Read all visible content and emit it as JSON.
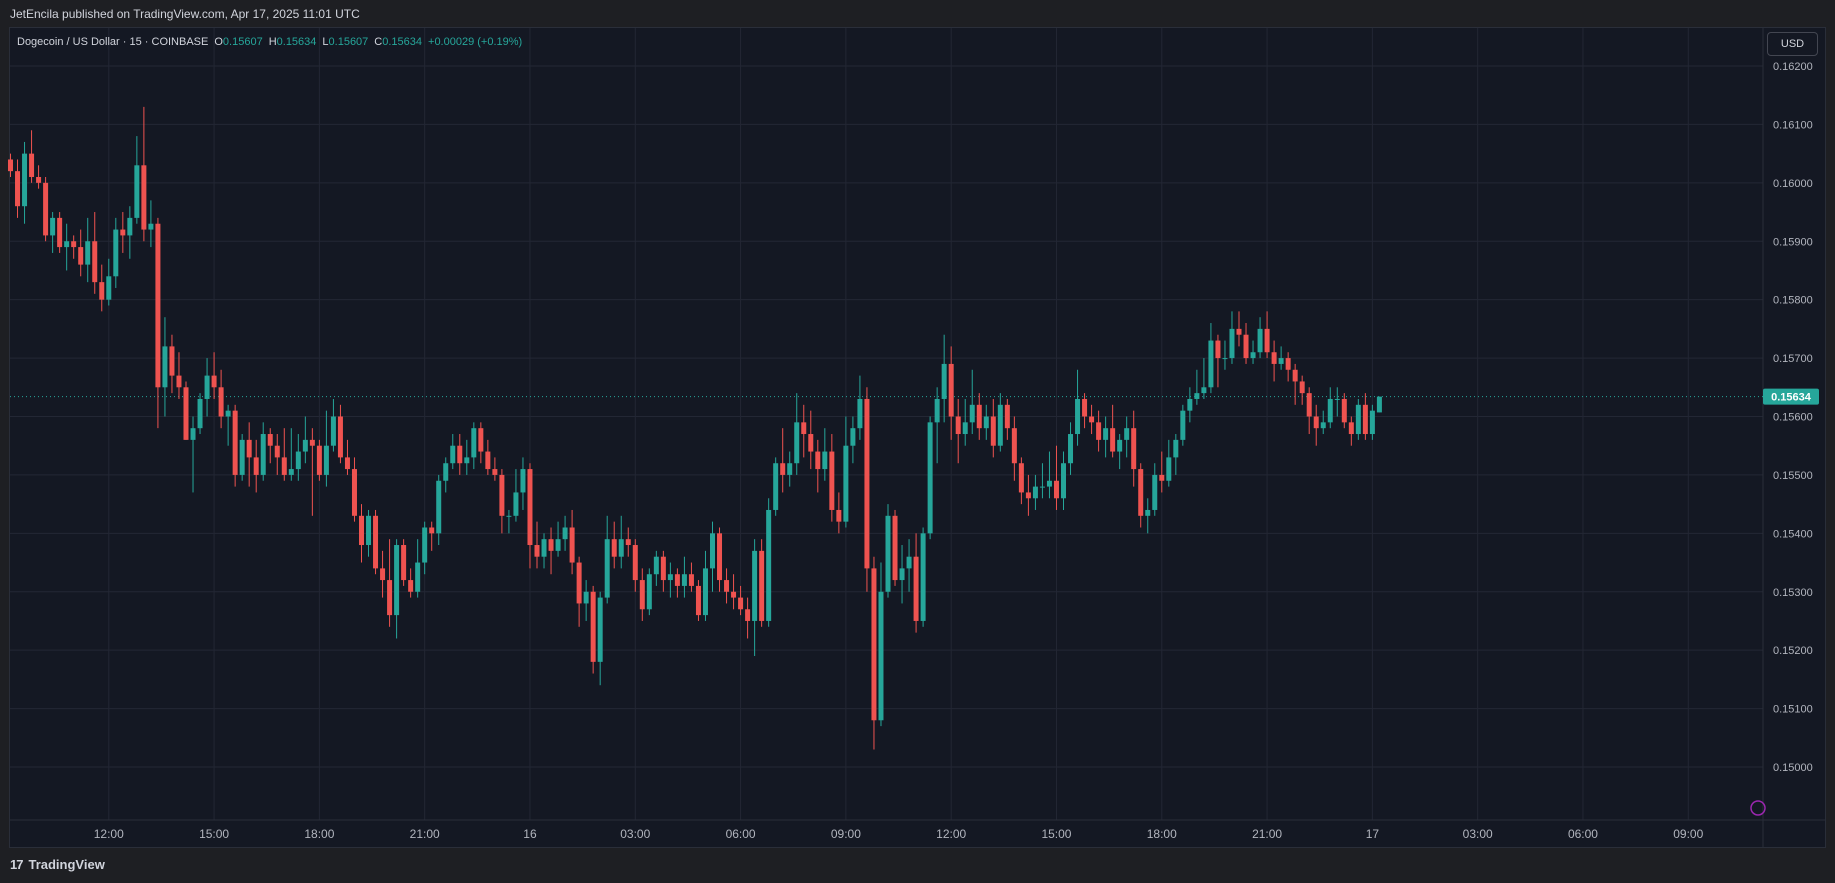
{
  "header": {
    "published": "JetEncila published on TradingView.com, Apr 17, 2025 11:01 UTC"
  },
  "legend": {
    "symbol": "Dogecoin / US Dollar · 15 · COINBASE",
    "o_label": "O",
    "o_value": "0.15607",
    "h_label": "H",
    "h_value": "0.15634",
    "l_label": "L",
    "l_value": "0.15607",
    "c_label": "C",
    "c_value": "0.15634",
    "change": "+0.00029 (+0.19%)"
  },
  "currency_button": "USD",
  "footer": {
    "brand": "TradingView",
    "logo_glyph": "17"
  },
  "colors": {
    "up": "#26a69a",
    "down": "#ef5350",
    "background": "#141823",
    "grid": "#232734",
    "text": "#d1d4dc"
  },
  "chart_data": {
    "type": "candlestick",
    "title": "Dogecoin / US Dollar · 15 · COINBASE",
    "ylim": [
      0.1494,
      0.1623
    ],
    "y_ticks": [
      "0.16200",
      "0.16100",
      "0.16000",
      "0.15900",
      "0.15800",
      "0.15700",
      "0.15600",
      "0.15500",
      "0.15400",
      "0.15300",
      "0.15200",
      "0.15100",
      "0.15000"
    ],
    "x_ticks": [
      {
        "label": "12:00",
        "index": 14
      },
      {
        "label": "15:00",
        "index": 29
      },
      {
        "label": "18:00",
        "index": 44
      },
      {
        "label": "21:00",
        "index": 59
      },
      {
        "label": "16",
        "index": 74
      },
      {
        "label": "03:00",
        "index": 89
      },
      {
        "label": "06:00",
        "index": 104
      },
      {
        "label": "09:00",
        "index": 119
      },
      {
        "label": "12:00",
        "index": 134
      },
      {
        "label": "15:00",
        "index": 149
      },
      {
        "label": "18:00",
        "index": 164
      },
      {
        "label": "21:00",
        "index": 179
      },
      {
        "label": "17",
        "index": 194
      },
      {
        "label": "03:00",
        "index": 209
      },
      {
        "label": "06:00",
        "index": 224
      },
      {
        "label": "09:00",
        "index": 239
      }
    ],
    "last_price": "0.15634",
    "last_price_value": 0.15634,
    "grid": true,
    "candles": [
      [
        0.1604,
        0.1605,
        0.1601,
        0.1602
      ],
      [
        0.1602,
        0.1604,
        0.1594,
        0.1596
      ],
      [
        0.1596,
        0.1607,
        0.1593,
        0.1605
      ],
      [
        0.1605,
        0.1609,
        0.16,
        0.1601
      ],
      [
        0.1601,
        0.1603,
        0.1599,
        0.16
      ],
      [
        0.16,
        0.1601,
        0.159,
        0.1591
      ],
      [
        0.1591,
        0.1595,
        0.1588,
        0.1594
      ],
      [
        0.1594,
        0.1595,
        0.1588,
        0.1589
      ],
      [
        0.1589,
        0.1593,
        0.1585,
        0.159
      ],
      [
        0.159,
        0.1591,
        0.1587,
        0.1589
      ],
      [
        0.1589,
        0.1592,
        0.1584,
        0.1586
      ],
      [
        0.1586,
        0.1594,
        0.1583,
        0.159
      ],
      [
        0.159,
        0.1595,
        0.1581,
        0.1583
      ],
      [
        0.1583,
        0.1586,
        0.1578,
        0.158
      ],
      [
        0.158,
        0.1587,
        0.1579,
        0.1584
      ],
      [
        0.1584,
        0.1594,
        0.1582,
        0.1592
      ],
      [
        0.1592,
        0.1595,
        0.1588,
        0.1591
      ],
      [
        0.1591,
        0.1596,
        0.1587,
        0.1594
      ],
      [
        0.1594,
        0.1608,
        0.1593,
        0.1603
      ],
      [
        0.1603,
        0.1613,
        0.159,
        0.1592
      ],
      [
        0.1592,
        0.1597,
        0.1589,
        0.1593
      ],
      [
        0.1593,
        0.1594,
        0.1558,
        0.1565
      ],
      [
        0.1565,
        0.1577,
        0.156,
        0.1572
      ],
      [
        0.1572,
        0.1574,
        0.1564,
        0.1567
      ],
      [
        0.1567,
        0.1571,
        0.1563,
        0.1565
      ],
      [
        0.1565,
        0.1566,
        0.1556,
        0.1556
      ],
      [
        0.1556,
        0.156,
        0.1547,
        0.1558
      ],
      [
        0.1558,
        0.1564,
        0.1557,
        0.1563
      ],
      [
        0.1563,
        0.157,
        0.156,
        0.1567
      ],
      [
        0.1567,
        0.1571,
        0.1563,
        0.1565
      ],
      [
        0.1565,
        0.1568,
        0.1558,
        0.156
      ],
      [
        0.156,
        0.1562,
        0.1555,
        0.1561
      ],
      [
        0.1561,
        0.1562,
        0.1548,
        0.155
      ],
      [
        0.155,
        0.1557,
        0.1549,
        0.1556
      ],
      [
        0.1556,
        0.1559,
        0.1548,
        0.1553
      ],
      [
        0.1553,
        0.1556,
        0.1547,
        0.155
      ],
      [
        0.155,
        0.1559,
        0.1549,
        0.1557
      ],
      [
        0.1557,
        0.1558,
        0.1552,
        0.1555
      ],
      [
        0.1555,
        0.1557,
        0.155,
        0.1553
      ],
      [
        0.1553,
        0.1558,
        0.1549,
        0.155
      ],
      [
        0.155,
        0.1558,
        0.1549,
        0.1551
      ],
      [
        0.1551,
        0.1557,
        0.1549,
        0.1554
      ],
      [
        0.1554,
        0.156,
        0.1552,
        0.1556
      ],
      [
        0.1556,
        0.1558,
        0.1543,
        0.1555
      ],
      [
        0.1555,
        0.1556,
        0.1549,
        0.155
      ],
      [
        0.155,
        0.1561,
        0.1548,
        0.1555
      ],
      [
        0.1555,
        0.1563,
        0.1554,
        0.156
      ],
      [
        0.156,
        0.1562,
        0.1552,
        0.1553
      ],
      [
        0.1553,
        0.1556,
        0.155,
        0.1551
      ],
      [
        0.1551,
        0.1553,
        0.1542,
        0.1543
      ],
      [
        0.1543,
        0.1545,
        0.1535,
        0.1538
      ],
      [
        0.1538,
        0.1544,
        0.1536,
        0.1543
      ],
      [
        0.1543,
        0.1544,
        0.1533,
        0.1534
      ],
      [
        0.1534,
        0.1537,
        0.1529,
        0.1532
      ],
      [
        0.1532,
        0.1539,
        0.1524,
        0.1526
      ],
      [
        0.1526,
        0.1539,
        0.1522,
        0.1538
      ],
      [
        0.1538,
        0.1539,
        0.1531,
        0.1532
      ],
      [
        0.1532,
        0.1534,
        0.1529,
        0.153
      ],
      [
        0.153,
        0.1539,
        0.1529,
        0.1535
      ],
      [
        0.1535,
        0.1542,
        0.1533,
        0.1541
      ],
      [
        0.1541,
        0.1542,
        0.1537,
        0.154
      ],
      [
        0.154,
        0.155,
        0.1538,
        0.1549
      ],
      [
        0.1549,
        0.1553,
        0.1547,
        0.1552
      ],
      [
        0.1552,
        0.1557,
        0.1551,
        0.1555
      ],
      [
        0.1555,
        0.1557,
        0.155,
        0.1552
      ],
      [
        0.1552,
        0.1556,
        0.155,
        0.1553
      ],
      [
        0.1553,
        0.1559,
        0.1551,
        0.1558
      ],
      [
        0.1558,
        0.1559,
        0.1552,
        0.1554
      ],
      [
        0.1554,
        0.1556,
        0.155,
        0.1551
      ],
      [
        0.1551,
        0.1553,
        0.1549,
        0.155
      ],
      [
        0.155,
        0.1551,
        0.154,
        0.1543
      ],
      [
        0.1543,
        0.1544,
        0.154,
        0.1543
      ],
      [
        0.1543,
        0.1551,
        0.1542,
        0.1547
      ],
      [
        0.1547,
        0.1553,
        0.1544,
        0.1551
      ],
      [
        0.1551,
        0.1552,
        0.1534,
        0.1538
      ],
      [
        0.1538,
        0.1542,
        0.1534,
        0.1536
      ],
      [
        0.1536,
        0.154,
        0.1534,
        0.1539
      ],
      [
        0.1539,
        0.1541,
        0.1533,
        0.1537
      ],
      [
        0.1537,
        0.1542,
        0.1536,
        0.1539
      ],
      [
        0.1539,
        0.1543,
        0.1537,
        0.1541
      ],
      [
        0.1541,
        0.1544,
        0.1533,
        0.1535
      ],
      [
        0.1535,
        0.1536,
        0.1524,
        0.1528
      ],
      [
        0.1528,
        0.1532,
        0.1525,
        0.153
      ],
      [
        0.153,
        0.1531,
        0.1516,
        0.1518
      ],
      [
        0.1518,
        0.153,
        0.1514,
        0.1529
      ],
      [
        0.1529,
        0.1543,
        0.1528,
        0.1539
      ],
      [
        0.1539,
        0.1542,
        0.1534,
        0.1536
      ],
      [
        0.1536,
        0.1543,
        0.1534,
        0.1539
      ],
      [
        0.1539,
        0.1541,
        0.1536,
        0.1538
      ],
      [
        0.1538,
        0.1539,
        0.153,
        0.1532
      ],
      [
        0.1532,
        0.1534,
        0.1525,
        0.1527
      ],
      [
        0.1527,
        0.1534,
        0.1526,
        0.1533
      ],
      [
        0.1533,
        0.1537,
        0.1531,
        0.1536
      ],
      [
        0.1536,
        0.1537,
        0.153,
        0.1532
      ],
      [
        0.1532,
        0.1535,
        0.1529,
        0.1533
      ],
      [
        0.1533,
        0.1534,
        0.1529,
        0.1531
      ],
      [
        0.1531,
        0.1536,
        0.1529,
        0.1533
      ],
      [
        0.1533,
        0.1535,
        0.153,
        0.1531
      ],
      [
        0.1531,
        0.1532,
        0.1525,
        0.1526
      ],
      [
        0.1526,
        0.1537,
        0.1525,
        0.1534
      ],
      [
        0.1534,
        0.1542,
        0.153,
        0.154
      ],
      [
        0.154,
        0.1541,
        0.153,
        0.1532
      ],
      [
        0.1532,
        0.1534,
        0.1528,
        0.153
      ],
      [
        0.153,
        0.1533,
        0.1527,
        0.1529
      ],
      [
        0.1529,
        0.1531,
        0.1526,
        0.1527
      ],
      [
        0.1527,
        0.1529,
        0.1522,
        0.1525
      ],
      [
        0.1525,
        0.1539,
        0.1519,
        0.1537
      ],
      [
        0.1537,
        0.1539,
        0.1524,
        0.1525
      ],
      [
        0.1525,
        0.1546,
        0.1524,
        0.1544
      ],
      [
        0.1544,
        0.1553,
        0.1543,
        0.1552
      ],
      [
        0.1552,
        0.1558,
        0.1547,
        0.155
      ],
      [
        0.155,
        0.1554,
        0.1548,
        0.1552
      ],
      [
        0.1552,
        0.1564,
        0.155,
        0.1559
      ],
      [
        0.1559,
        0.1562,
        0.1553,
        0.1557
      ],
      [
        0.1557,
        0.1561,
        0.1551,
        0.1554
      ],
      [
        0.1554,
        0.1556,
        0.1547,
        0.1551
      ],
      [
        0.1551,
        0.1558,
        0.1549,
        0.1554
      ],
      [
        0.1554,
        0.1557,
        0.1542,
        0.1544
      ],
      [
        0.1544,
        0.1547,
        0.154,
        0.1542
      ],
      [
        0.1542,
        0.156,
        0.1541,
        0.1555
      ],
      [
        0.1555,
        0.156,
        0.1552,
        0.1558
      ],
      [
        0.1558,
        0.1567,
        0.1556,
        0.1563
      ],
      [
        0.1563,
        0.1565,
        0.153,
        0.1534
      ],
      [
        0.1534,
        0.1536,
        0.1503,
        0.1508
      ],
      [
        0.1508,
        0.1535,
        0.1507,
        0.153
      ],
      [
        0.153,
        0.1545,
        0.1529,
        0.1543
      ],
      [
        0.1543,
        0.1544,
        0.1531,
        0.1532
      ],
      [
        0.1532,
        0.1538,
        0.1528,
        0.1534
      ],
      [
        0.1534,
        0.1539,
        0.153,
        0.1536
      ],
      [
        0.1536,
        0.154,
        0.1523,
        0.1525
      ],
      [
        0.1525,
        0.1541,
        0.1524,
        0.154
      ],
      [
        0.154,
        0.156,
        0.1539,
        0.1559
      ],
      [
        0.1559,
        0.1565,
        0.1552,
        0.1563
      ],
      [
        0.1563,
        0.1574,
        0.1559,
        0.1569
      ],
      [
        0.1569,
        0.1572,
        0.1556,
        0.156
      ],
      [
        0.156,
        0.1563,
        0.1552,
        0.1557
      ],
      [
        0.1557,
        0.1563,
        0.1555,
        0.1559
      ],
      [
        0.1559,
        0.1568,
        0.1557,
        0.1562
      ],
      [
        0.1562,
        0.1564,
        0.1556,
        0.1558
      ],
      [
        0.1558,
        0.1562,
        0.1556,
        0.156
      ],
      [
        0.156,
        0.1563,
        0.1553,
        0.1555
      ],
      [
        0.1555,
        0.1564,
        0.1554,
        0.1562
      ],
      [
        0.1562,
        0.1563,
        0.1556,
        0.1558
      ],
      [
        0.1558,
        0.156,
        0.1549,
        0.1552
      ],
      [
        0.1552,
        0.1553,
        0.1545,
        0.1547
      ],
      [
        0.1547,
        0.155,
        0.1543,
        0.1546
      ],
      [
        0.1546,
        0.155,
        0.1544,
        0.1548
      ],
      [
        0.1548,
        0.1552,
        0.1546,
        0.1548
      ],
      [
        0.1548,
        0.1554,
        0.1546,
        0.1549
      ],
      [
        0.1549,
        0.1555,
        0.1544,
        0.1546
      ],
      [
        0.1546,
        0.1554,
        0.1544,
        0.1552
      ],
      [
        0.1552,
        0.1559,
        0.155,
        0.1557
      ],
      [
        0.1557,
        0.1568,
        0.1555,
        0.1563
      ],
      [
        0.1563,
        0.1564,
        0.1558,
        0.156
      ],
      [
        0.156,
        0.1562,
        0.1557,
        0.1559
      ],
      [
        0.1559,
        0.1561,
        0.1554,
        0.1556
      ],
      [
        0.1556,
        0.156,
        0.1553,
        0.1558
      ],
      [
        0.1558,
        0.1562,
        0.1553,
        0.1554
      ],
      [
        0.1554,
        0.1557,
        0.1551,
        0.1556
      ],
      [
        0.1556,
        0.156,
        0.1553,
        0.1558
      ],
      [
        0.1558,
        0.1561,
        0.1548,
        0.1551
      ],
      [
        0.1551,
        0.1552,
        0.1541,
        0.1543
      ],
      [
        0.1543,
        0.1546,
        0.154,
        0.1544
      ],
      [
        0.1544,
        0.1552,
        0.1543,
        0.155
      ],
      [
        0.155,
        0.1554,
        0.1547,
        0.1549
      ],
      [
        0.1549,
        0.1556,
        0.1548,
        0.1553
      ],
      [
        0.1553,
        0.1557,
        0.155,
        0.1556
      ],
      [
        0.1556,
        0.1562,
        0.1555,
        0.1561
      ],
      [
        0.1561,
        0.1565,
        0.1559,
        0.1563
      ],
      [
        0.1563,
        0.1568,
        0.1562,
        0.1564
      ],
      [
        0.1564,
        0.157,
        0.1563,
        0.1565
      ],
      [
        0.1565,
        0.1576,
        0.1564,
        0.1573
      ],
      [
        0.1573,
        0.1574,
        0.1565,
        0.157
      ],
      [
        0.157,
        0.1573,
        0.1568,
        0.157
      ],
      [
        0.157,
        0.1578,
        0.1569,
        0.1575
      ],
      [
        0.1575,
        0.1578,
        0.1572,
        0.1574
      ],
      [
        0.1574,
        0.1576,
        0.1569,
        0.157
      ],
      [
        0.157,
        0.1573,
        0.1569,
        0.1571
      ],
      [
        0.1571,
        0.1577,
        0.157,
        0.1575
      ],
      [
        0.1575,
        0.1578,
        0.157,
        0.1571
      ],
      [
        0.1571,
        0.1573,
        0.1566,
        0.1569
      ],
      [
        0.1569,
        0.1572,
        0.1568,
        0.157
      ],
      [
        0.157,
        0.1571,
        0.1566,
        0.1568
      ],
      [
        0.1568,
        0.1569,
        0.1562,
        0.1566
      ],
      [
        0.1566,
        0.1567,
        0.1562,
        0.1564
      ],
      [
        0.1564,
        0.1565,
        0.1557,
        0.156
      ],
      [
        0.156,
        0.1562,
        0.1555,
        0.1558
      ],
      [
        0.1558,
        0.1561,
        0.1557,
        0.1559
      ],
      [
        0.1559,
        0.1565,
        0.1558,
        0.1563
      ],
      [
        0.1563,
        0.1565,
        0.156,
        0.1563
      ],
      [
        0.1563,
        0.1564,
        0.1558,
        0.1559
      ],
      [
        0.1559,
        0.156,
        0.1555,
        0.1557
      ],
      [
        0.1557,
        0.1563,
        0.1556,
        0.1562
      ],
      [
        0.1562,
        0.1564,
        0.1556,
        0.1557
      ],
      [
        0.1557,
        0.1562,
        0.1556,
        0.1561
      ],
      [
        0.15607,
        0.15634,
        0.15607,
        0.15634
      ]
    ]
  }
}
